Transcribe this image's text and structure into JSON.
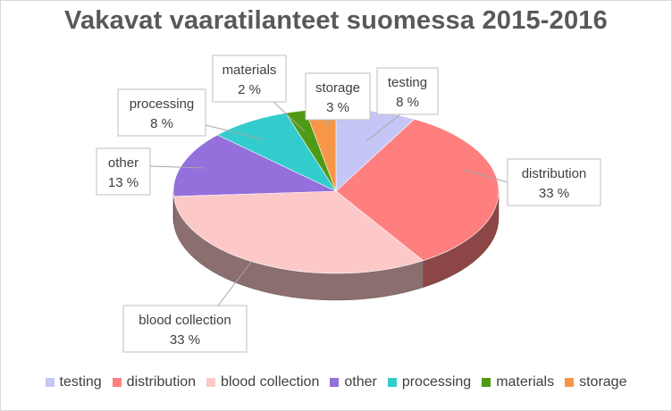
{
  "chart_data": {
    "type": "pie",
    "title": "Vakavat vaaratilanteet suomessa 2015-2016",
    "slices": [
      {
        "label": "testing",
        "value": 8,
        "value_label": "8 %",
        "color": "#c6c6f6"
      },
      {
        "label": "distribution",
        "value": 33,
        "value_label": "33 %",
        "color": "#ff7f7f"
      },
      {
        "label": "blood collection",
        "value": 33,
        "value_label": "33 %",
        "color": "#fcc8c8"
      },
      {
        "label": "other",
        "value": 13,
        "value_label": "13 %",
        "color": "#9370db"
      },
      {
        "label": "processing",
        "value": 8,
        "value_label": "8 %",
        "color": "#33cccc"
      },
      {
        "label": "materials",
        "value": 2,
        "value_label": "2 %",
        "color": "#4f9a14"
      },
      {
        "label": "storage",
        "value": 3,
        "value_label": "3 %",
        "color": "#f79646"
      }
    ],
    "legend_position": "bottom",
    "style": "3d"
  }
}
